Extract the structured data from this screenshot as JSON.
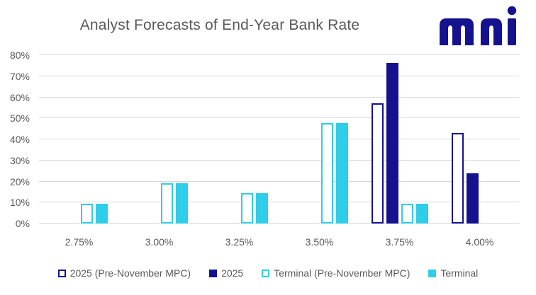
{
  "header": {
    "title": "Analyst Forecasts of End-Year Bank Rate",
    "logo_text": "mni"
  },
  "colors": {
    "navy": "#14128F",
    "cyan": "#2FCDE8",
    "gridline": "#D9D9D9",
    "axis_text": "#595959",
    "title_text": "#595959",
    "background": "#FFFFFF"
  },
  "chart_data": {
    "type": "bar",
    "title": "Analyst Forecasts of End-Year Bank Rate",
    "categories": [
      "2.75%",
      "3.00%",
      "3.25%",
      "3.50%",
      "3.75%",
      "4.00%"
    ],
    "series": [
      {
        "name": "2025 (Pre-November MPC)",
        "style": "outline",
        "color": "#14128F",
        "values": [
          0,
          0,
          0,
          0,
          57.1,
          42.9
        ]
      },
      {
        "name": "2025",
        "style": "solid",
        "color": "#14128F",
        "values": [
          0,
          0,
          0,
          0,
          76.2,
          23.8
        ]
      },
      {
        "name": "Terminal (Pre-November MPC)",
        "style": "outline",
        "color": "#2FCDE8",
        "values": [
          9.5,
          19.0,
          14.3,
          47.6,
          9.5,
          0
        ]
      },
      {
        "name": "Terminal",
        "style": "solid",
        "color": "#2FCDE8",
        "values": [
          9.5,
          19.0,
          14.3,
          47.6,
          9.5,
          0
        ]
      }
    ],
    "xlabel": "",
    "ylabel": "",
    "ylim": [
      0,
      80
    ],
    "ytick_step": 10,
    "ytick_suffix": "%",
    "grid": true,
    "legend_position": "bottom"
  }
}
